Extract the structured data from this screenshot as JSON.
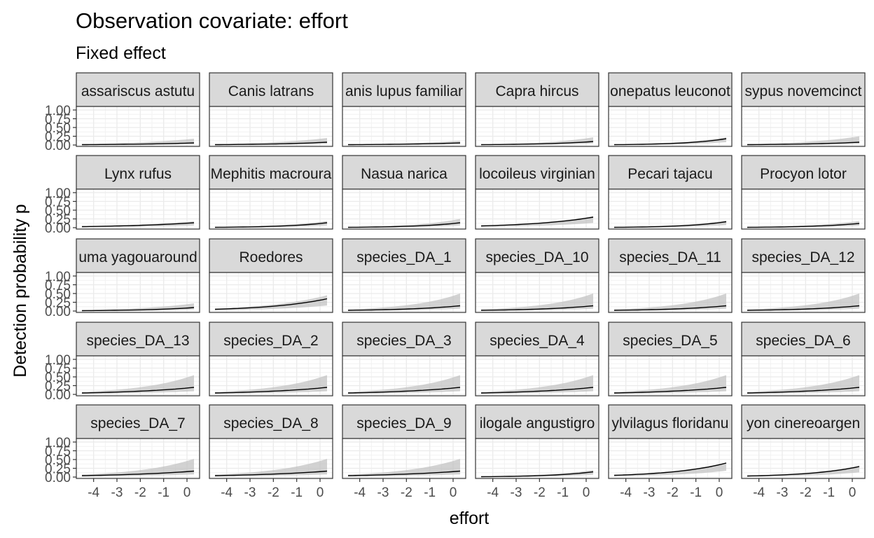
{
  "chart_data": {
    "type": "line",
    "title": "Observation covariate: effort",
    "subtitle": "Fixed effect",
    "xlabel": "effort",
    "ylabel": "Detection probability p",
    "xlim": [
      -4.5,
      0.3
    ],
    "ylim": [
      0,
      1
    ],
    "x_ticks": [
      -4,
      -3,
      -2,
      -1,
      0
    ],
    "y_ticks": [
      "0.00",
      "0.25",
      "0.50",
      "0.75",
      "1.00"
    ],
    "grid": true,
    "x": [
      -4.5,
      0.3
    ],
    "panels": [
      {
        "label": "assariscus astutu",
        "line": [
          0.01,
          0.06
        ],
        "upper": [
          0.03,
          0.18
        ]
      },
      {
        "label": "Canis latrans",
        "line": [
          0.01,
          0.08
        ],
        "upper": [
          0.03,
          0.2
        ]
      },
      {
        "label": "anis lupus familiar",
        "line": [
          0.01,
          0.06
        ],
        "upper": [
          0.02,
          0.12
        ]
      },
      {
        "label": "Capra hircus",
        "line": [
          0.01,
          0.1
        ],
        "upper": [
          0.02,
          0.22
        ]
      },
      {
        "label": "onepatus leuconot",
        "line": [
          0.01,
          0.18
        ],
        "upper": [
          0.02,
          0.22
        ]
      },
      {
        "label": "sypus novemcinct",
        "line": [
          0.01,
          0.08
        ],
        "upper": [
          0.03,
          0.25
        ]
      },
      {
        "label": "Lynx rufus",
        "line": [
          0.03,
          0.14
        ],
        "upper": [
          0.04,
          0.18
        ]
      },
      {
        "label": "Mephitis macroura",
        "line": [
          0.01,
          0.14
        ],
        "upper": [
          0.02,
          0.19
        ]
      },
      {
        "label": "Nasua narica",
        "line": [
          0.01,
          0.14
        ],
        "upper": [
          0.02,
          0.25
        ]
      },
      {
        "label": "locoileus virginian",
        "line": [
          0.05,
          0.3
        ],
        "upper": [
          0.06,
          0.33
        ]
      },
      {
        "label": "Pecari tajacu",
        "line": [
          0.01,
          0.17
        ],
        "upper": [
          0.02,
          0.2
        ]
      },
      {
        "label": "Procyon lotor",
        "line": [
          0.01,
          0.12
        ],
        "upper": [
          0.02,
          0.19
        ]
      },
      {
        "label": "uma yagouaround",
        "line": [
          0.01,
          0.1
        ],
        "upper": [
          0.03,
          0.22
        ]
      },
      {
        "label": "Roedores",
        "line": [
          0.05,
          0.35
        ],
        "upper": [
          0.07,
          0.45
        ]
      },
      {
        "label": "species_DA_1",
        "line": [
          0.02,
          0.15
        ],
        "upper": [
          0.05,
          0.5
        ]
      },
      {
        "label": "species_DA_10",
        "line": [
          0.02,
          0.15
        ],
        "upper": [
          0.05,
          0.5
        ]
      },
      {
        "label": "species_DA_11",
        "line": [
          0.02,
          0.15
        ],
        "upper": [
          0.05,
          0.5
        ]
      },
      {
        "label": "species_DA_12",
        "line": [
          0.02,
          0.15
        ],
        "upper": [
          0.05,
          0.5
        ]
      },
      {
        "label": "species_DA_13",
        "line": [
          0.04,
          0.2
        ],
        "upper": [
          0.07,
          0.55
        ]
      },
      {
        "label": "species_DA_2",
        "line": [
          0.04,
          0.2
        ],
        "upper": [
          0.07,
          0.55
        ]
      },
      {
        "label": "species_DA_3",
        "line": [
          0.04,
          0.2
        ],
        "upper": [
          0.07,
          0.55
        ]
      },
      {
        "label": "species_DA_4",
        "line": [
          0.04,
          0.2
        ],
        "upper": [
          0.07,
          0.55
        ]
      },
      {
        "label": "species_DA_5",
        "line": [
          0.04,
          0.2
        ],
        "upper": [
          0.07,
          0.55
        ]
      },
      {
        "label": "species_DA_6",
        "line": [
          0.04,
          0.2
        ],
        "upper": [
          0.07,
          0.55
        ]
      },
      {
        "label": "species_DA_7",
        "line": [
          0.04,
          0.17
        ],
        "upper": [
          0.07,
          0.52
        ]
      },
      {
        "label": "species_DA_8",
        "line": [
          0.04,
          0.17
        ],
        "upper": [
          0.07,
          0.52
        ]
      },
      {
        "label": "species_DA_9",
        "line": [
          0.04,
          0.17
        ],
        "upper": [
          0.07,
          0.52
        ]
      },
      {
        "label": "ilogale angustigro",
        "line": [
          0.01,
          0.15
        ],
        "upper": [
          0.02,
          0.2
        ]
      },
      {
        "label": "ylvilagus floridanu",
        "line": [
          0.05,
          0.4
        ],
        "upper": [
          0.06,
          0.42
        ]
      },
      {
        "label": "yon cinereoargen",
        "line": [
          0.03,
          0.3
        ],
        "upper": [
          0.04,
          0.33
        ]
      }
    ]
  }
}
